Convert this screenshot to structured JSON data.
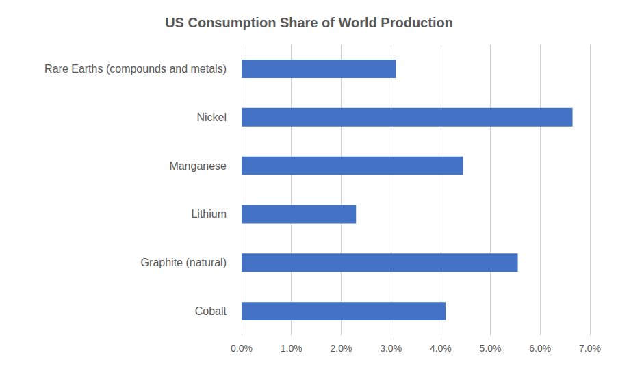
{
  "chart_data": {
    "type": "bar",
    "title": "US Consumption Share of World Production",
    "orientation": "horizontal",
    "categories": [
      "Rare Earths (compounds and metals)",
      "Nickel",
      "Manganese",
      "Lithium",
      "Graphite (natural)",
      "Cobalt"
    ],
    "values": [
      3.1,
      6.65,
      4.45,
      2.3,
      5.55,
      4.1
    ],
    "color": "#4472c4",
    "xlim": [
      0,
      7
    ],
    "xticks": [
      {
        "value": 0,
        "label": "0.0%"
      },
      {
        "value": 1,
        "label": "1.0%"
      },
      {
        "value": 2,
        "label": "2.0%"
      },
      {
        "value": 3,
        "label": "3.0%"
      },
      {
        "value": 4,
        "label": "4.0%"
      },
      {
        "value": 5,
        "label": "5.0%"
      },
      {
        "value": 6,
        "label": "6.0%"
      },
      {
        "value": 7,
        "label": "7.0%"
      }
    ],
    "grid": true
  }
}
